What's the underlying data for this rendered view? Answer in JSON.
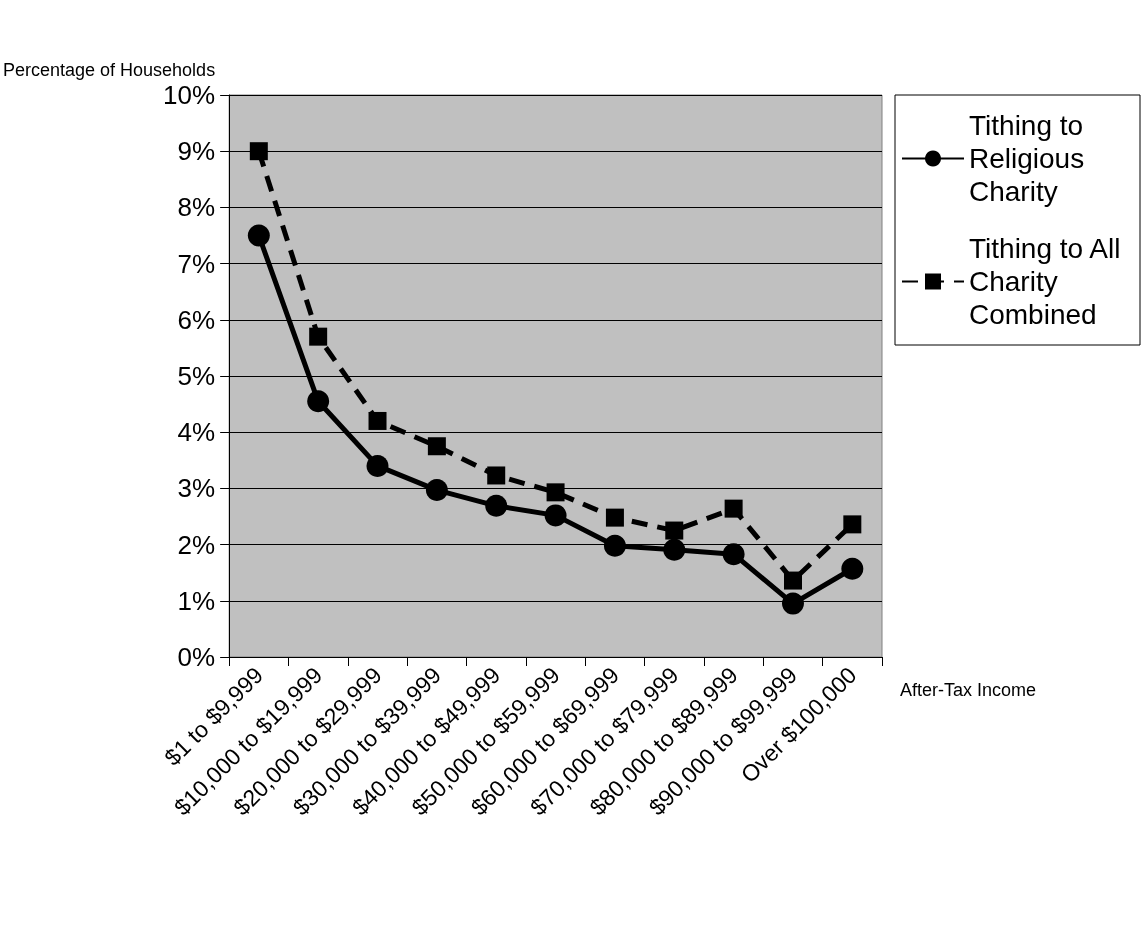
{
  "chart_data": {
    "type": "line",
    "ylabel": "Percentage of Households",
    "xlabel": "After-Tax Income",
    "categories": [
      "$1 to $9,999",
      "$10,000 to $19,999",
      "$20,000 to $29,999",
      "$30,000 to $39,999",
      "$40,000 to $49,999",
      "$50,000 to $59,999",
      "$60,000 to $69,999",
      "$70,000 to $79,999",
      "$80,000 to $89,999",
      "$90,000 to $99,999",
      "Over $100,000"
    ],
    "series": [
      {
        "name": "Tithing to Religious Charity",
        "color": "#000000",
        "marker": "circle",
        "line_style": "solid",
        "values": [
          7.5,
          4.55,
          3.4,
          2.97,
          2.69,
          2.52,
          1.98,
          1.91,
          1.83,
          0.95,
          1.57
        ]
      },
      {
        "name": "Tithing to All Charity Combined",
        "color": "#000000",
        "marker": "square",
        "line_style": "dashed",
        "values": [
          9.0,
          5.7,
          4.2,
          3.75,
          3.23,
          2.93,
          2.48,
          2.25,
          2.64,
          1.36,
          2.36
        ]
      }
    ],
    "ylim": [
      0,
      10
    ],
    "yticks": [
      {
        "value": 0,
        "label": "0%"
      },
      {
        "value": 1,
        "label": "1%"
      },
      {
        "value": 2,
        "label": "2%"
      },
      {
        "value": 3,
        "label": "3%"
      },
      {
        "value": 4,
        "label": "4%"
      },
      {
        "value": 5,
        "label": "5%"
      },
      {
        "value": 6,
        "label": "6%"
      },
      {
        "value": 7,
        "label": "7%"
      },
      {
        "value": 8,
        "label": "8%"
      },
      {
        "value": 9,
        "label": "9%"
      },
      {
        "value": 10,
        "label": "10%"
      }
    ],
    "grid": "y",
    "legend": "right"
  }
}
